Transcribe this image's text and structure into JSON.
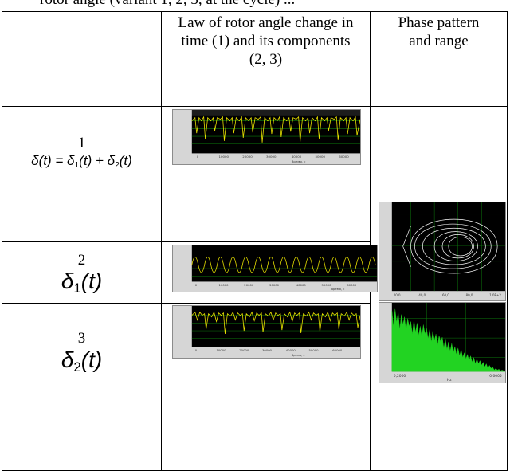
{
  "top_text": "rotor angle (variant 1, 2, 3, at the cycle) ...",
  "table": {
    "headers": [
      "",
      "Law of rotor angle change in time (1) and its components (2, 3)",
      "Phase pattern and range"
    ],
    "rows": [
      {
        "number": "1",
        "formula": "δ(t) = δ1(t) + δ2(t)"
      },
      {
        "number": "2",
        "formula": "δ1(t)"
      },
      {
        "number": "3",
        "formula": "δ2(t)"
      }
    ]
  },
  "colors": {
    "plot_background": "#000000",
    "trace_yellow": "#e8e200",
    "grid_green": "#0d7a0d",
    "spectrum_fill": "#22d322",
    "phase_trace": "#ffffff"
  },
  "icons": [
    "time-plot-total",
    "time-plot-component-1",
    "time-plot-component-2",
    "phase-portrait",
    "spectrum-plot"
  ]
}
